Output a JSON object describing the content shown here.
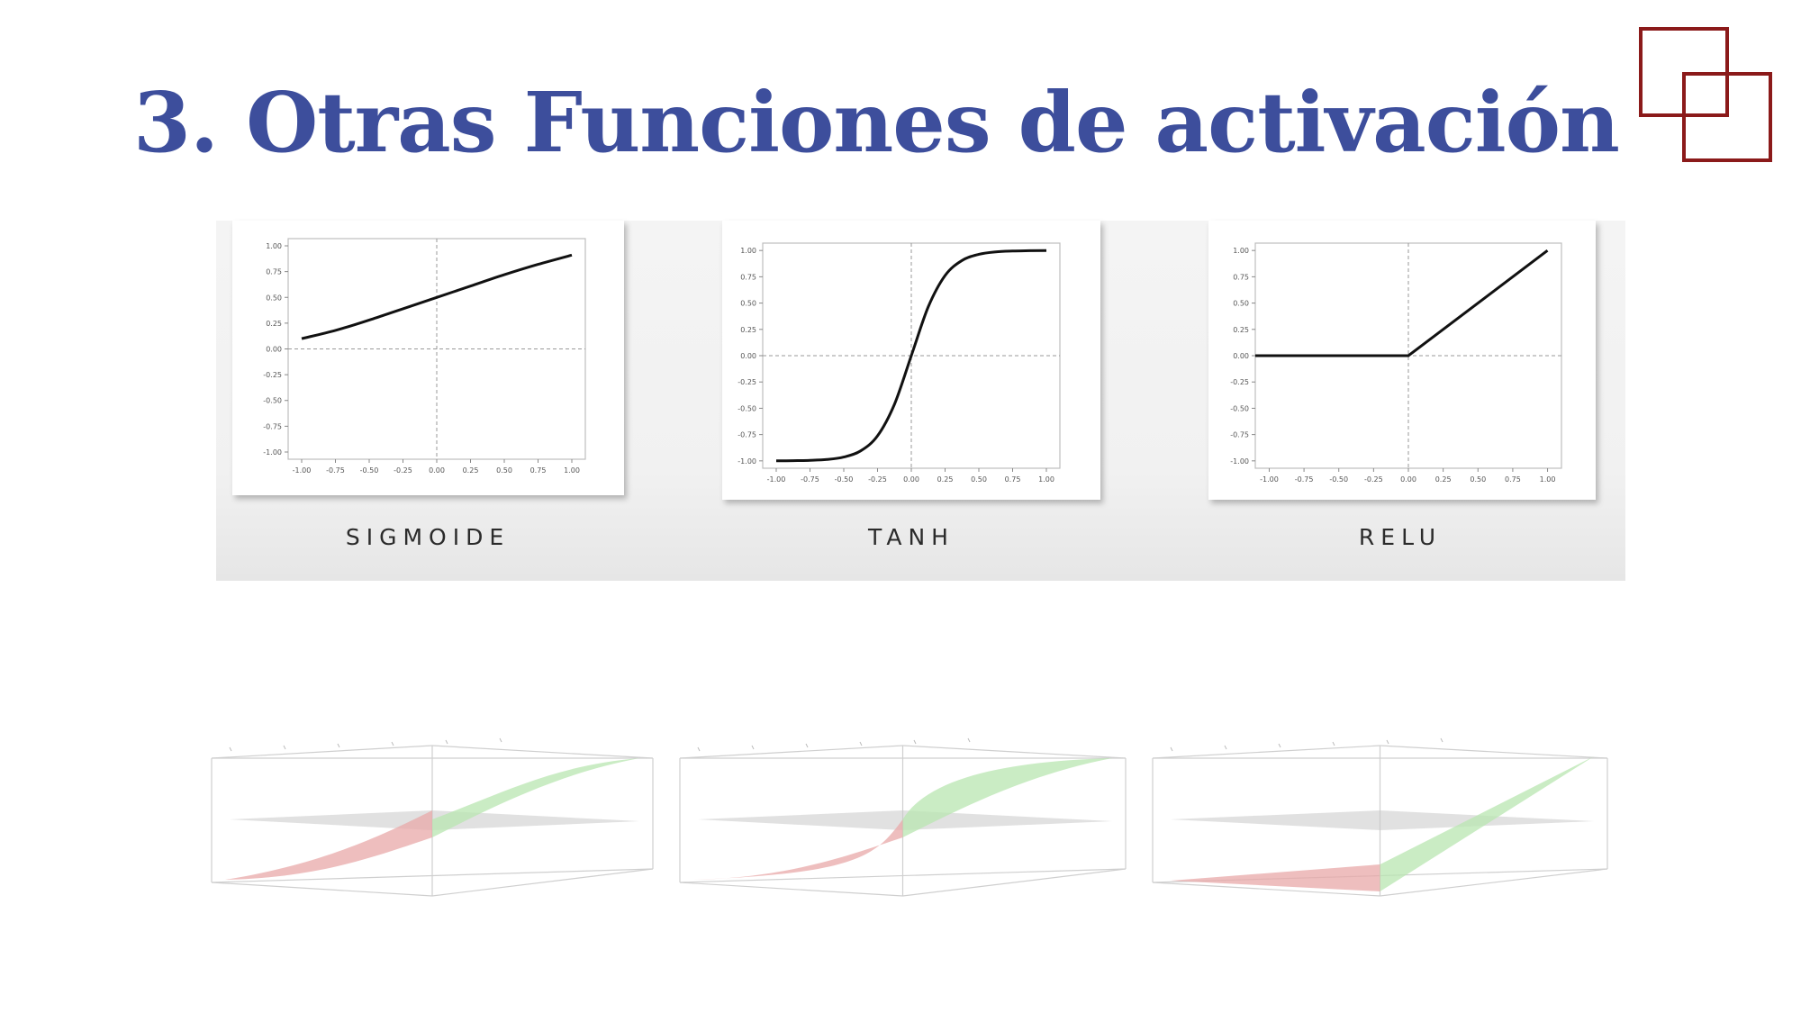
{
  "slide": {
    "title": "3. Otras Funciones de activación"
  },
  "colors": {
    "title": "#3d4e9c",
    "logo": "#8b1a1a",
    "curve": "#111111",
    "surface_pos": "#b8e6b0",
    "surface_neg": "#e8a8a8",
    "surface_plane": "#c8c8c8"
  },
  "chart_data": [
    {
      "type": "line",
      "name": "SIGMOIDE",
      "caption": "SIGMOIDE",
      "x": [
        -1.0,
        -0.75,
        -0.5,
        -0.25,
        0.0,
        0.25,
        0.5,
        0.75,
        1.0
      ],
      "y": [
        0.1,
        0.18,
        0.28,
        0.39,
        0.5,
        0.61,
        0.72,
        0.82,
        0.91
      ],
      "xlim": [
        -1.1,
        1.1
      ],
      "ylim": [
        -1.07,
        1.07
      ],
      "xticks": [
        "-1.00",
        "-0.75",
        "-0.50",
        "-0.25",
        "0.00",
        "0.25",
        "0.50",
        "0.75",
        "1.00"
      ],
      "yticks": [
        "1.00",
        "0.75",
        "0.50",
        "0.25",
        "0.00",
        "-0.25",
        "-0.50",
        "-0.75",
        "-1.00"
      ]
    },
    {
      "type": "line",
      "name": "TANH",
      "caption": "TANH",
      "x": [
        -1.0,
        -0.875,
        -0.75,
        -0.625,
        -0.5,
        -0.375,
        -0.25,
        -0.125,
        0.0,
        0.125,
        0.25,
        0.375,
        0.5,
        0.625,
        0.75,
        0.875,
        1.0
      ],
      "y": [
        -0.999,
        -0.998,
        -0.995,
        -0.987,
        -0.964,
        -0.905,
        -0.762,
        -0.462,
        0.0,
        0.462,
        0.762,
        0.905,
        0.964,
        0.987,
        0.995,
        0.998,
        0.999
      ],
      "xlim": [
        -1.1,
        1.1
      ],
      "ylim": [
        -1.07,
        1.07
      ],
      "xticks": [
        "-1.00",
        "-0.75",
        "-0.50",
        "-0.25",
        "0.00",
        "0.25",
        "0.50",
        "0.75",
        "1.00"
      ],
      "yticks": [
        "1.00",
        "0.75",
        "0.50",
        "0.25",
        "0.00",
        "-0.25",
        "-0.50",
        "-0.75",
        "-1.00"
      ]
    },
    {
      "type": "line",
      "name": "RELU",
      "caption": "RELU",
      "x": [
        -1.1,
        0.0,
        1.0
      ],
      "y": [
        0.0,
        0.0,
        1.0
      ],
      "xlim": [
        -1.1,
        1.1
      ],
      "ylim": [
        -1.07,
        1.07
      ],
      "xticks": [
        "-1.00",
        "-0.75",
        "-0.50",
        "-0.25",
        "0.00",
        "0.25",
        "0.50",
        "0.75",
        "1.00"
      ],
      "yticks": [
        "1.00",
        "0.75",
        "0.50",
        "0.25",
        "0.00",
        "-0.25",
        "-0.50",
        "-0.75",
        "-1.00"
      ]
    }
  ],
  "surfaces": [
    {
      "name": "SIGMOIDE",
      "shape": "sigmoid"
    },
    {
      "name": "TANH",
      "shape": "tanh"
    },
    {
      "name": "RELU",
      "shape": "relu"
    }
  ]
}
